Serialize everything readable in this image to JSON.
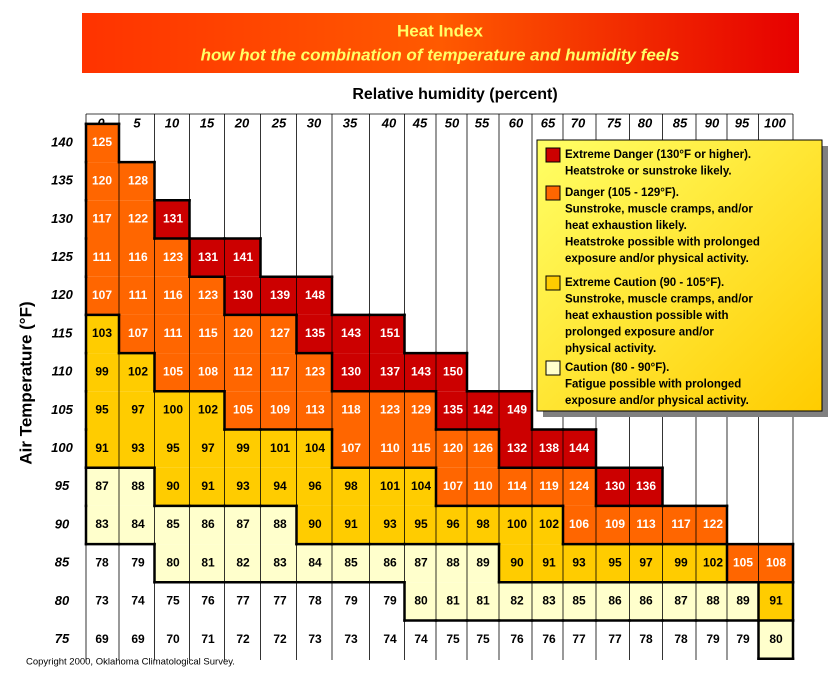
{
  "header": {
    "title": "Heat Index",
    "subtitle": "how hot the combination of temperature and humidity feels"
  },
  "table": {
    "column_title": "Relative humidity (percent)",
    "row_title": "Air Temperature (°F)",
    "columns": [
      0,
      5,
      10,
      15,
      20,
      25,
      30,
      35,
      40,
      45,
      50,
      55,
      60,
      65,
      70,
      75,
      80,
      85,
      90,
      95,
      100
    ],
    "rows": [
      {
        "label": 140,
        "values": [
          125
        ],
        "colors": [
          "#ff6600"
        ]
      },
      {
        "label": 135,
        "values": [
          120,
          128
        ],
        "colors": [
          "#ff6600",
          "#ff6600"
        ]
      },
      {
        "label": 130,
        "values": [
          117,
          122,
          131
        ],
        "colors": [
          "#ff6600",
          "#ff6600",
          "#cc0000"
        ]
      },
      {
        "label": 125,
        "values": [
          111,
          116,
          123,
          131,
          141
        ],
        "colors": [
          "#ff6600",
          "#ff6600",
          "#ff6600",
          "#cc0000",
          "#cc0000"
        ]
      },
      {
        "label": 120,
        "values": [
          107,
          111,
          116,
          123,
          130,
          139,
          148
        ],
        "colors": [
          "#ff6600",
          "#ff6600",
          "#ff6600",
          "#ff6600",
          "#cc0000",
          "#cc0000",
          "#cc0000"
        ]
      },
      {
        "label": 115,
        "values": [
          103,
          107,
          111,
          115,
          120,
          127,
          135,
          143,
          151
        ],
        "colors": [
          "#ffcc00",
          "#ff6600",
          "#ff6600",
          "#ff6600",
          "#ff6600",
          "#ff6600",
          "#cc0000",
          "#cc0000",
          "#cc0000"
        ]
      },
      {
        "label": 110,
        "values": [
          99,
          102,
          105,
          108,
          112,
          117,
          123,
          130,
          137,
          143,
          150
        ],
        "colors": [
          "#ffcc00",
          "#ffcc00",
          "#ff6600",
          "#ff6600",
          "#ff6600",
          "#ff6600",
          "#ff6600",
          "#cc0000",
          "#cc0000",
          "#cc0000",
          "#cc0000"
        ]
      },
      {
        "label": 105,
        "values": [
          95,
          97,
          100,
          102,
          105,
          109,
          113,
          118,
          123,
          129,
          135,
          142,
          149
        ],
        "colors": [
          "#ffcc00",
          "#ffcc00",
          "#ffcc00",
          "#ffcc00",
          "#ff6600",
          "#ff6600",
          "#ff6600",
          "#ff6600",
          "#ff6600",
          "#ff6600",
          "#cc0000",
          "#cc0000",
          "#cc0000"
        ]
      },
      {
        "label": 100,
        "values": [
          91,
          93,
          95,
          97,
          99,
          101,
          104,
          107,
          110,
          115,
          120,
          126,
          132,
          138,
          144
        ],
        "colors": [
          "#ffcc00",
          "#ffcc00",
          "#ffcc00",
          "#ffcc00",
          "#ffcc00",
          "#ffcc00",
          "#ffcc00",
          "#ff6600",
          "#ff6600",
          "#ff6600",
          "#ff6600",
          "#ff6600",
          "#cc0000",
          "#cc0000",
          "#cc0000"
        ]
      },
      {
        "label": 95,
        "values": [
          87,
          88,
          90,
          91,
          93,
          94,
          96,
          98,
          101,
          104,
          107,
          110,
          114,
          119,
          124,
          130,
          136
        ],
        "colors": [
          "#ffffcc",
          "#ffffcc",
          "#ffcc00",
          "#ffcc00",
          "#ffcc00",
          "#ffcc00",
          "#ffcc00",
          "#ffcc00",
          "#ffcc00",
          "#ffcc00",
          "#ff6600",
          "#ff6600",
          "#ff6600",
          "#ff6600",
          "#ff6600",
          "#cc0000",
          "#cc0000"
        ]
      },
      {
        "label": 90,
        "values": [
          83,
          84,
          85,
          86,
          87,
          88,
          90,
          91,
          93,
          95,
          96,
          98,
          100,
          102,
          106,
          109,
          113,
          117,
          122
        ],
        "colors": [
          "#ffffcc",
          "#ffffcc",
          "#ffffcc",
          "#ffffcc",
          "#ffffcc",
          "#ffffcc",
          "#ffcc00",
          "#ffcc00",
          "#ffcc00",
          "#ffcc00",
          "#ffcc00",
          "#ffcc00",
          "#ffcc00",
          "#ffcc00",
          "#ff6600",
          "#ff6600",
          "#ff6600",
          "#ff6600",
          "#ff6600"
        ]
      },
      {
        "label": 85,
        "values": [
          78,
          79,
          80,
          81,
          82,
          83,
          84,
          85,
          86,
          87,
          88,
          89,
          90,
          91,
          93,
          95,
          97,
          99,
          102,
          105,
          108
        ],
        "colors": [
          "#ffffff",
          "#ffffff",
          "#ffffcc",
          "#ffffcc",
          "#ffffcc",
          "#ffffcc",
          "#ffffcc",
          "#ffffcc",
          "#ffffcc",
          "#ffffcc",
          "#ffffcc",
          "#ffffcc",
          "#ffcc00",
          "#ffcc00",
          "#ffcc00",
          "#ffcc00",
          "#ffcc00",
          "#ffcc00",
          "#ffcc00",
          "#ff6600",
          "#ff6600"
        ]
      },
      {
        "label": 80,
        "values": [
          73,
          74,
          75,
          76,
          77,
          77,
          78,
          79,
          79,
          80,
          81,
          81,
          82,
          83,
          85,
          86,
          86,
          87,
          88,
          89,
          91
        ],
        "colors": [
          "#ffffff",
          "#ffffff",
          "#ffffff",
          "#ffffff",
          "#ffffff",
          "#ffffff",
          "#ffffff",
          "#ffffff",
          "#ffffff",
          "#ffffcc",
          "#ffffcc",
          "#ffffcc",
          "#ffffcc",
          "#ffffcc",
          "#ffffcc",
          "#ffffcc",
          "#ffffcc",
          "#ffffcc",
          "#ffffcc",
          "#ffffcc",
          "#ffcc00"
        ]
      },
      {
        "label": 75,
        "values": [
          69,
          69,
          70,
          71,
          72,
          72,
          73,
          73,
          74,
          74,
          75,
          75,
          76,
          76,
          77,
          77,
          78,
          78,
          79,
          79,
          80
        ],
        "colors": [
          "#ffffff",
          "#ffffff",
          "#ffffff",
          "#ffffff",
          "#ffffff",
          "#ffffff",
          "#ffffff",
          "#ffffff",
          "#ffffff",
          "#ffffff",
          "#ffffff",
          "#ffffff",
          "#ffffff",
          "#ffffff",
          "#ffffff",
          "#ffffff",
          "#ffffff",
          "#ffffff",
          "#ffffff",
          "#ffffff",
          "#ffffcc"
        ]
      }
    ]
  },
  "legend": {
    "items": [
      {
        "color": "#cc0000",
        "lines": [
          "Extreme Danger (130°F or higher).",
          "Heatstroke or sunstroke likely."
        ]
      },
      {
        "color": "#ff6600",
        "lines": [
          "Danger (105 - 129°F).",
          "Sunstroke, muscle cramps, and/or",
          "heat exhaustion likely.",
          "Heatstroke possible with prolonged",
          "exposure and/or physical activity."
        ]
      },
      {
        "color": "#ffcc00",
        "lines": [
          "Extreme Caution (90 - 105°F).",
          "Sunstroke, muscle cramps, and/or",
          "heat exhaustion possible with",
          "prolonged exposure and/or",
          "physical activity."
        ]
      },
      {
        "color": "#ffffcc",
        "lines": [
          "Caution (80 - 90°F).",
          "Fatigue possible with prolonged",
          "exposure and/or physical activity."
        ]
      }
    ]
  },
  "footer": "Copyright 2000, Oklahoma Climatological Survey."
}
